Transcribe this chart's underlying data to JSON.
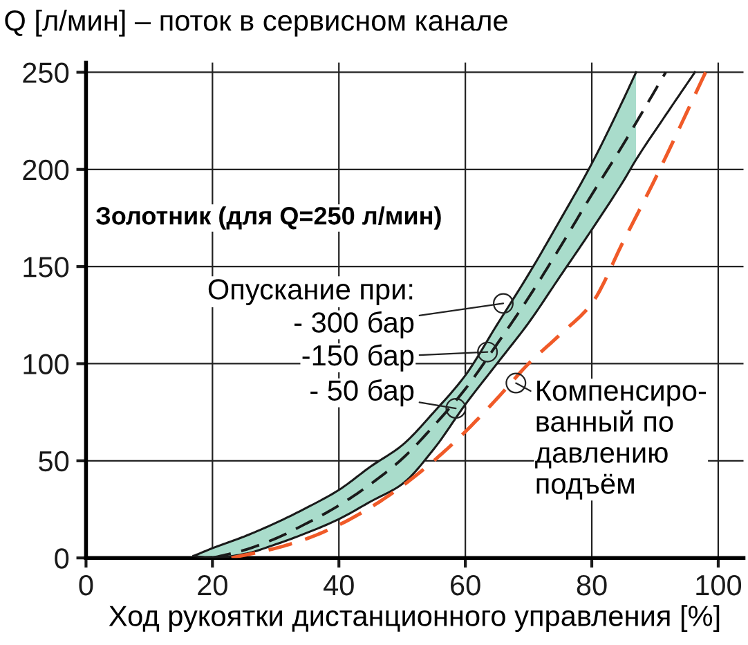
{
  "chart_data": {
    "type": "line",
    "ylabel": "Q [л/мин] – поток в сервисном канале",
    "xlabel": "Ход рукоятки дистанционного управления [%]",
    "xlim": [
      0,
      104
    ],
    "ylim": [
      0,
      255
    ],
    "xticks": [
      0,
      20,
      40,
      60,
      80,
      100
    ],
    "yticks": [
      0,
      50,
      100,
      150,
      200,
      250
    ],
    "grid": true,
    "legend": false,
    "marker": "none",
    "series": [
      {
        "color": "#1a1a1a",
        "line_style": "solid",
        "x": [
          17,
          20,
          25,
          30,
          35,
          40,
          45,
          50,
          55,
          60,
          65,
          70,
          75,
          80,
          85,
          87
        ],
        "values": [
          1,
          5,
          11,
          18,
          26,
          35,
          47,
          58,
          75,
          94,
          120,
          146,
          174,
          203,
          236,
          250
        ],
        "lower": [
          1,
          0,
          2,
          7,
          13,
          20,
          29,
          38,
          56,
          79,
          100,
          121,
          145,
          169,
          194,
          205
        ],
        "upper": [
          1,
          5,
          11,
          18,
          26,
          35,
          47,
          58,
          75,
          94,
          120,
          146,
          174,
          203,
          236,
          250
        ]
      },
      {
        "color": "#1a1a1a",
        "line_style": "dashed",
        "x": [
          20,
          25,
          30,
          35,
          40,
          45,
          50,
          55,
          60,
          65,
          70,
          75,
          80,
          85,
          87,
          91.7
        ],
        "values": [
          0,
          4,
          10,
          18,
          27,
          38,
          51,
          68,
          87,
          110,
          134,
          160,
          187,
          213,
          224,
          250
        ]
      },
      {
        "color": "#1a1a1a",
        "line_style": "solid",
        "x": [
          17,
          20,
          25,
          30,
          35,
          40,
          45,
          50,
          55,
          60,
          65,
          70,
          75,
          80,
          85,
          87,
          91.7,
          96.3
        ],
        "values": [
          1,
          0,
          2,
          7,
          13,
          20,
          29,
          38,
          56,
          79,
          100,
          121,
          145,
          169,
          194,
          205,
          228,
          250
        ]
      },
      {
        "color": "#f05a28",
        "line_style": "dashed",
        "x": [
          23,
          30,
          35,
          40,
          45,
          50,
          55,
          60,
          65,
          70,
          75,
          80,
          85,
          90,
          98
        ],
        "values": [
          0,
          5,
          10,
          17,
          26,
          37,
          50,
          65,
          82,
          100,
          115,
          131,
          163,
          195,
          250
        ]
      }
    ],
    "annotations": [
      "Золотник (для Q=250 л/мин)",
      "Опускание при:",
      {
        "text": "- 300 бар",
        "x": 66,
        "y": 131
      },
      {
        "text": "-150 бар",
        "x": 63.5,
        "y": 106
      },
      {
        "text": "- 50 бар",
        "x": 58.5,
        "y": 77
      },
      {
        "text": "Компенсиро-\nванный по\nдавлению\nподъём",
        "x": 68,
        "y": 90
      }
    ]
  }
}
